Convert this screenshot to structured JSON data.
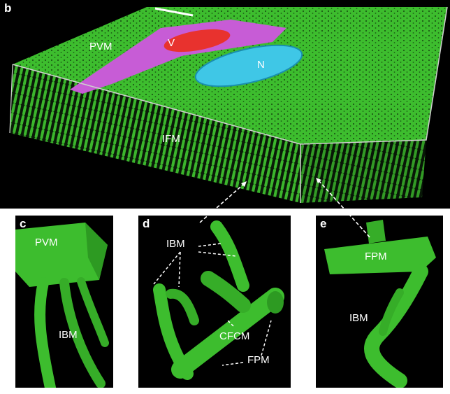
{
  "colors": {
    "background": "#000000",
    "mitochondria": "#3dbd2e",
    "vessel": "#e8322e",
    "pericyte_region": "#c75cd6",
    "nucleus": "#3fc7e6",
    "label_text": "#ffffff"
  },
  "panel_b": {
    "letter": "b",
    "labels": {
      "pvm": "PVM",
      "v": "V",
      "n": "N",
      "ifm": "IFM"
    }
  },
  "panel_c": {
    "letter": "c",
    "labels": {
      "pvm": "PVM",
      "ibm": "IBM"
    }
  },
  "panel_d": {
    "letter": "d",
    "labels": {
      "ibm": "IBM",
      "cfcm": "CFCM",
      "fpm": "FPM"
    }
  },
  "panel_e": {
    "letter": "e",
    "labels": {
      "fpm": "FPM",
      "ibm": "IBM"
    }
  }
}
